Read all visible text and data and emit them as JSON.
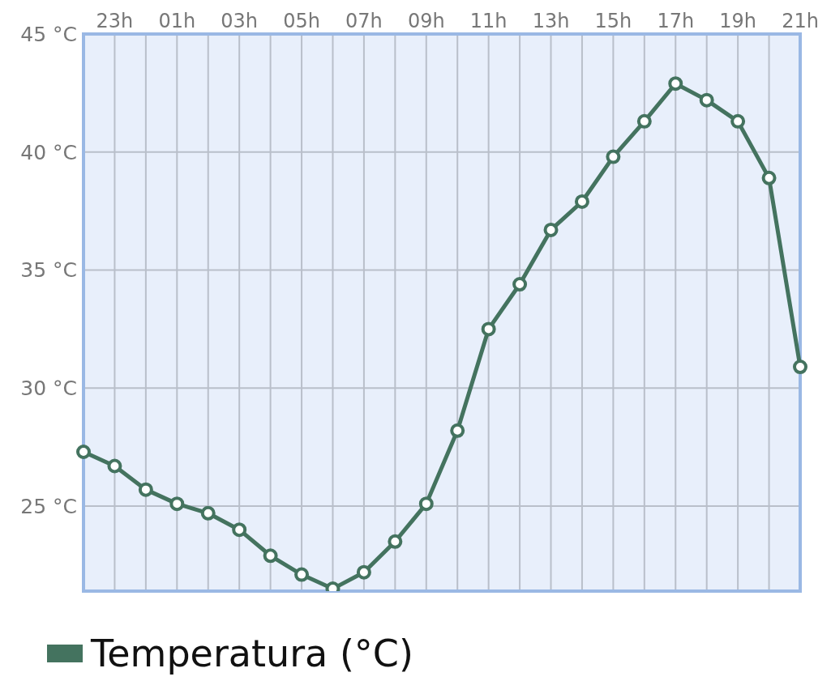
{
  "chart_data": {
    "type": "line",
    "categories": [
      null,
      "23h",
      null,
      "01h",
      null,
      "03h",
      null,
      "05h",
      null,
      "07h",
      null,
      "09h",
      null,
      "11h",
      null,
      "13h",
      null,
      "15h",
      null,
      "17h",
      null,
      "19h",
      null,
      "21h"
    ],
    "series": [
      {
        "name": "Temperatura (°C)",
        "color": "#44735f",
        "values": [
          27.3,
          26.7,
          25.7,
          25.1,
          24.7,
          24.0,
          22.9,
          22.1,
          21.5,
          22.2,
          23.5,
          25.1,
          28.2,
          32.5,
          34.4,
          36.7,
          37.9,
          39.8,
          41.3,
          42.9,
          42.2,
          41.3,
          38.9,
          30.9
        ]
      }
    ],
    "ylim": [
      21.4,
      45
    ],
    "yticks": [
      {
        "value": 25,
        "label": "25 °C"
      },
      {
        "value": 30,
        "label": "30 °C"
      },
      {
        "value": 35,
        "label": "35 °C"
      },
      {
        "value": 40,
        "label": "40 °C"
      },
      {
        "value": 45,
        "label": "45 °C"
      }
    ],
    "grid": true,
    "legend": "bottom left",
    "marker": "circle",
    "line_style": "solid"
  }
}
